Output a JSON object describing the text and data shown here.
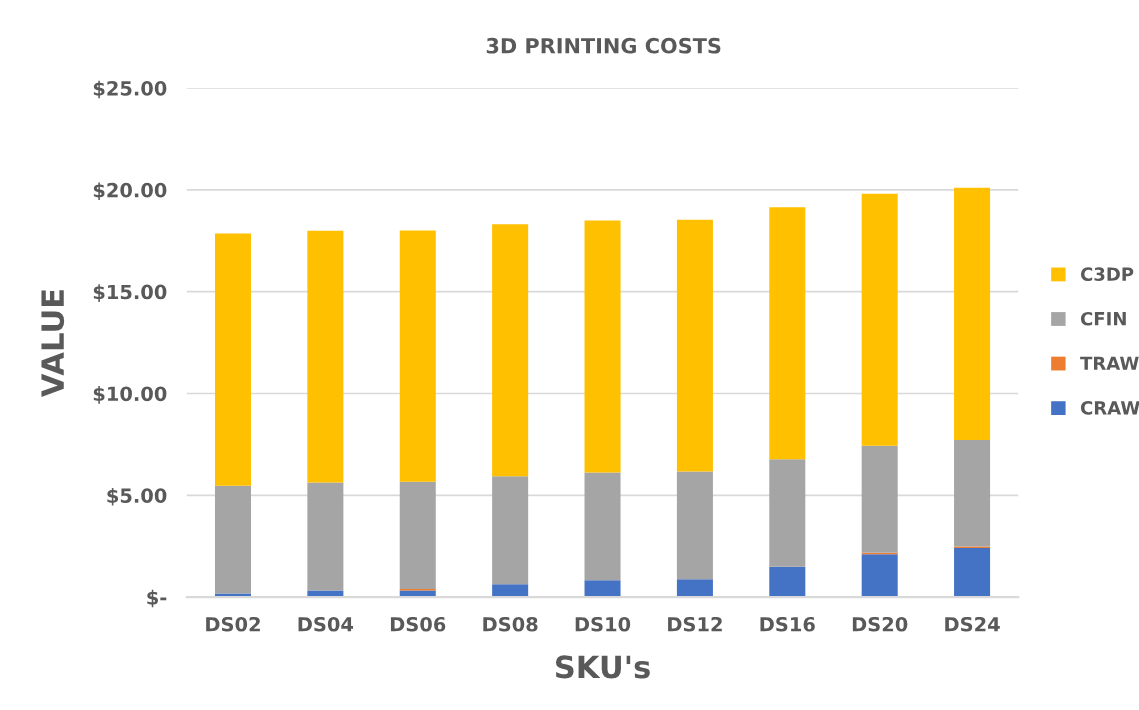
{
  "chart_data": {
    "type": "bar",
    "title": "3D PRINTING COSTS",
    "xlabel": "SKU's",
    "ylabel": "VALUE",
    "categories": [
      "DS02",
      "DS04",
      "DS06",
      "DS08",
      "DS10",
      "DS12",
      "DS16",
      "DS20",
      "DS24"
    ],
    "stacked": true,
    "series": [
      {
        "name": "CRAW",
        "color": "#4472c4",
        "values": [
          0.18,
          0.33,
          0.33,
          0.63,
          0.83,
          0.88,
          1.49,
          2.11,
          2.41
        ]
      },
      {
        "name": "TRAW",
        "color": "#ed7d31",
        "values": [
          null,
          null,
          0.07,
          null,
          null,
          null,
          null,
          0.07,
          0.07
        ]
      },
      {
        "name": "CFIN",
        "color": "#a5a5a5",
        "values": [
          5.29,
          5.3,
          5.26,
          5.3,
          5.29,
          5.29,
          5.28,
          5.25,
          5.24
        ]
      },
      {
        "name": "C3DP",
        "color": "#ffc000",
        "values": [
          12.39,
          12.36,
          12.35,
          12.38,
          12.38,
          12.36,
          12.37,
          12.38,
          12.38
        ]
      }
    ],
    "ylim": [
      0,
      25
    ],
    "yticks": [
      {
        "value": 0,
        "label": "$-"
      },
      {
        "value": 5,
        "label": "$5.00"
      },
      {
        "value": 10,
        "label": "$10.00"
      },
      {
        "value": 15,
        "label": "$15.00"
      },
      {
        "value": 20,
        "label": "$20.00"
      },
      {
        "value": 25,
        "label": "$25.00"
      }
    ],
    "grid": "y",
    "legend": "right"
  }
}
